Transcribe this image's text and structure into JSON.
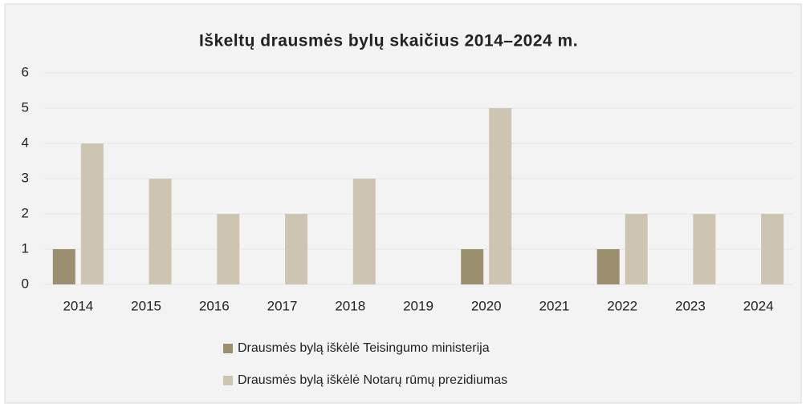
{
  "chart_data": {
    "type": "bar",
    "title": "Iškeltų drausmės bylų skaičius 2014–2024 m.",
    "categories": [
      "2014",
      "2015",
      "2016",
      "2017",
      "2018",
      "2019",
      "2020",
      "2021",
      "2022",
      "2023",
      "2024"
    ],
    "series": [
      {
        "name": "Drausmės bylą iškėlė Teisingumo ministerija",
        "color": "#9c8f70",
        "values": [
          1,
          0,
          0,
          0,
          0,
          0,
          1,
          0,
          1,
          0,
          0
        ]
      },
      {
        "name": "Drausmės bylą iškėlė Notarų rūmų prezidiumas",
        "color": "#cdc4b1",
        "values": [
          4,
          3,
          2,
          2,
          3,
          0,
          5,
          0,
          2,
          2,
          2
        ]
      }
    ],
    "ylim": [
      0,
      6
    ],
    "yticks": [
      0,
      1,
      2,
      3,
      4,
      5,
      6
    ],
    "grid": true,
    "legend": "bottom"
  }
}
